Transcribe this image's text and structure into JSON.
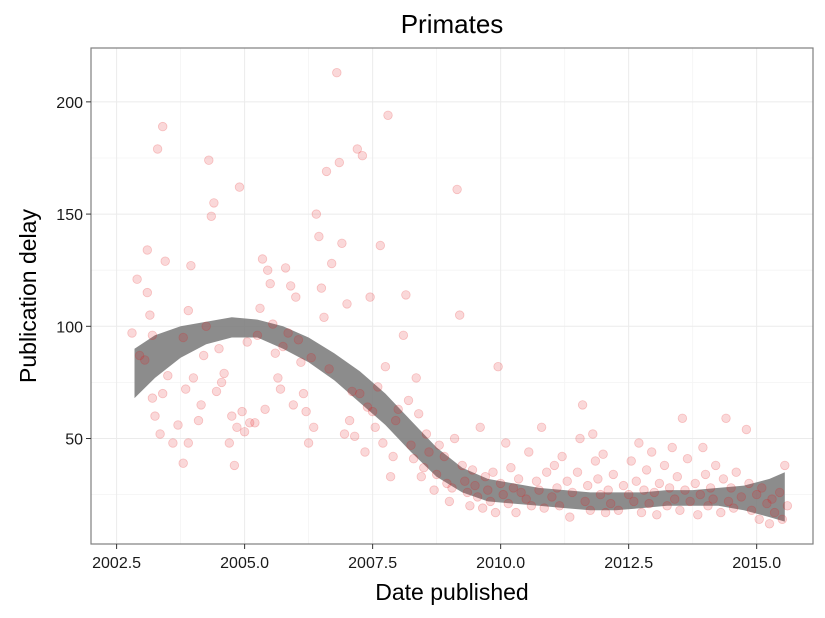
{
  "chart_data": {
    "type": "scatter",
    "title": "Primates",
    "xlabel": "Date published",
    "ylabel": "Publication delay",
    "xlim": [
      2002.0,
      2016.1
    ],
    "ylim": [
      3,
      224
    ],
    "x_ticks": [
      2002.5,
      2005.0,
      2007.5,
      2010.0,
      2012.5,
      2015.0
    ],
    "x_tick_labels": [
      "2002.5",
      "2005.0",
      "2007.5",
      "2010.0",
      "2012.5",
      "2015.0"
    ],
    "y_ticks": [
      50,
      100,
      150,
      200
    ],
    "y_tick_labels": [
      "50",
      "100",
      "150",
      "200"
    ],
    "grid": true,
    "point_color": "#e41a1c",
    "band_color": "#7f7f7f",
    "points": [
      [
        2002.8,
        97
      ],
      [
        2002.9,
        121
      ],
      [
        2002.95,
        87
      ],
      [
        2003.05,
        85
      ],
      [
        2003.1,
        134
      ],
      [
        2003.15,
        105
      ],
      [
        2003.2,
        96
      ],
      [
        2003.1,
        115
      ],
      [
        2003.2,
        68
      ],
      [
        2003.25,
        60
      ],
      [
        2003.3,
        179
      ],
      [
        2003.4,
        189
      ],
      [
        2003.45,
        129
      ],
      [
        2003.5,
        78
      ],
      [
        2003.35,
        52
      ],
      [
        2003.4,
        70
      ],
      [
        2003.6,
        48
      ],
      [
        2003.7,
        56
      ],
      [
        2003.8,
        95
      ],
      [
        2003.85,
        72
      ],
      [
        2003.9,
        107
      ],
      [
        2003.95,
        127
      ],
      [
        2003.8,
        39
      ],
      [
        2003.9,
        48
      ],
      [
        2004.0,
        77
      ],
      [
        2004.1,
        58
      ],
      [
        2004.15,
        65
      ],
      [
        2004.2,
        87
      ],
      [
        2004.25,
        100
      ],
      [
        2004.3,
        174
      ],
      [
        2004.35,
        149
      ],
      [
        2004.4,
        155
      ],
      [
        2004.45,
        71
      ],
      [
        2004.5,
        90
      ],
      [
        2004.55,
        75
      ],
      [
        2004.6,
        79
      ],
      [
        2004.7,
        48
      ],
      [
        2004.75,
        60
      ],
      [
        2004.8,
        38
      ],
      [
        2004.85,
        55
      ],
      [
        2004.9,
        162
      ],
      [
        2004.95,
        62
      ],
      [
        2005.0,
        53
      ],
      [
        2005.05,
        93
      ],
      [
        2005.1,
        57
      ],
      [
        2005.2,
        57
      ],
      [
        2005.25,
        96
      ],
      [
        2005.3,
        108
      ],
      [
        2005.35,
        130
      ],
      [
        2005.4,
        63
      ],
      [
        2005.45,
        125
      ],
      [
        2005.5,
        119
      ],
      [
        2005.55,
        101
      ],
      [
        2005.6,
        88
      ],
      [
        2005.65,
        77
      ],
      [
        2005.7,
        72
      ],
      [
        2005.75,
        91
      ],
      [
        2005.8,
        126
      ],
      [
        2005.85,
        97
      ],
      [
        2005.9,
        118
      ],
      [
        2005.95,
        65
      ],
      [
        2006.0,
        113
      ],
      [
        2006.05,
        94
      ],
      [
        2006.1,
        84
      ],
      [
        2006.15,
        70
      ],
      [
        2006.2,
        62
      ],
      [
        2006.25,
        48
      ],
      [
        2006.3,
        86
      ],
      [
        2006.35,
        55
      ],
      [
        2006.4,
        150
      ],
      [
        2006.45,
        140
      ],
      [
        2006.5,
        117
      ],
      [
        2006.55,
        104
      ],
      [
        2006.6,
        169
      ],
      [
        2006.65,
        81
      ],
      [
        2006.7,
        128
      ],
      [
        2006.8,
        213
      ],
      [
        2006.85,
        173
      ],
      [
        2006.9,
        137
      ],
      [
        2006.95,
        52
      ],
      [
        2007.0,
        110
      ],
      [
        2007.05,
        58
      ],
      [
        2007.1,
        71
      ],
      [
        2007.15,
        51
      ],
      [
        2007.2,
        179
      ],
      [
        2007.25,
        70
      ],
      [
        2007.3,
        176
      ],
      [
        2007.35,
        44
      ],
      [
        2007.4,
        64
      ],
      [
        2007.45,
        113
      ],
      [
        2007.5,
        62
      ],
      [
        2007.55,
        55
      ],
      [
        2007.6,
        73
      ],
      [
        2007.65,
        136
      ],
      [
        2007.7,
        48
      ],
      [
        2007.75,
        82
      ],
      [
        2007.8,
        194
      ],
      [
        2007.85,
        33
      ],
      [
        2007.9,
        42
      ],
      [
        2007.95,
        58
      ],
      [
        2008.0,
        63
      ],
      [
        2008.1,
        96
      ],
      [
        2008.15,
        114
      ],
      [
        2008.2,
        67
      ],
      [
        2008.25,
        47
      ],
      [
        2008.3,
        41
      ],
      [
        2008.35,
        77
      ],
      [
        2008.4,
        61
      ],
      [
        2008.45,
        33
      ],
      [
        2008.5,
        37
      ],
      [
        2008.55,
        52
      ],
      [
        2008.6,
        44
      ],
      [
        2008.7,
        27
      ],
      [
        2008.75,
        34
      ],
      [
        2008.8,
        47
      ],
      [
        2008.9,
        42
      ],
      [
        2008.95,
        30
      ],
      [
        2009.0,
        22
      ],
      [
        2009.05,
        28
      ],
      [
        2009.1,
        50
      ],
      [
        2009.15,
        161
      ],
      [
        2009.2,
        105
      ],
      [
        2009.25,
        38
      ],
      [
        2009.3,
        31
      ],
      [
        2009.35,
        26
      ],
      [
        2009.4,
        20
      ],
      [
        2009.45,
        36
      ],
      [
        2009.5,
        29
      ],
      [
        2009.55,
        24
      ],
      [
        2009.6,
        55
      ],
      [
        2009.65,
        19
      ],
      [
        2009.7,
        33
      ],
      [
        2009.75,
        27
      ],
      [
        2009.8,
        22
      ],
      [
        2009.85,
        35
      ],
      [
        2009.9,
        17
      ],
      [
        2009.95,
        82
      ],
      [
        2010.0,
        30
      ],
      [
        2010.05,
        25
      ],
      [
        2010.1,
        48
      ],
      [
        2010.15,
        21
      ],
      [
        2010.2,
        37
      ],
      [
        2010.25,
        28
      ],
      [
        2010.3,
        17
      ],
      [
        2010.35,
        32
      ],
      [
        2010.4,
        26
      ],
      [
        2010.5,
        23
      ],
      [
        2010.55,
        44
      ],
      [
        2010.6,
        20
      ],
      [
        2010.7,
        31
      ],
      [
        2010.75,
        27
      ],
      [
        2010.8,
        55
      ],
      [
        2010.85,
        19
      ],
      [
        2010.9,
        35
      ],
      [
        2011.0,
        24
      ],
      [
        2011.05,
        38
      ],
      [
        2011.1,
        28
      ],
      [
        2011.15,
        20
      ],
      [
        2011.2,
        42
      ],
      [
        2011.3,
        31
      ],
      [
        2011.35,
        15
      ],
      [
        2011.4,
        26
      ],
      [
        2011.5,
        35
      ],
      [
        2011.55,
        50
      ],
      [
        2011.6,
        65
      ],
      [
        2011.65,
        22
      ],
      [
        2011.7,
        29
      ],
      [
        2011.75,
        18
      ],
      [
        2011.8,
        52
      ],
      [
        2011.85,
        40
      ],
      [
        2011.9,
        32
      ],
      [
        2011.95,
        25
      ],
      [
        2012.0,
        43
      ],
      [
        2012.05,
        17
      ],
      [
        2012.1,
        27
      ],
      [
        2012.15,
        21
      ],
      [
        2012.2,
        34
      ],
      [
        2012.3,
        18
      ],
      [
        2012.4,
        29
      ],
      [
        2012.5,
        25
      ],
      [
        2012.55,
        40
      ],
      [
        2012.6,
        22
      ],
      [
        2012.65,
        31
      ],
      [
        2012.7,
        48
      ],
      [
        2012.75,
        17
      ],
      [
        2012.8,
        27
      ],
      [
        2012.85,
        36
      ],
      [
        2012.9,
        21
      ],
      [
        2012.95,
        44
      ],
      [
        2013.0,
        26
      ],
      [
        2013.05,
        16
      ],
      [
        2013.1,
        30
      ],
      [
        2013.2,
        38
      ],
      [
        2013.25,
        20
      ],
      [
        2013.3,
        28
      ],
      [
        2013.35,
        46
      ],
      [
        2013.4,
        23
      ],
      [
        2013.45,
        33
      ],
      [
        2013.5,
        18
      ],
      [
        2013.55,
        59
      ],
      [
        2013.6,
        27
      ],
      [
        2013.65,
        41
      ],
      [
        2013.7,
        22
      ],
      [
        2013.8,
        30
      ],
      [
        2013.85,
        16
      ],
      [
        2013.9,
        25
      ],
      [
        2013.95,
        46
      ],
      [
        2014.0,
        34
      ],
      [
        2014.05,
        20
      ],
      [
        2014.1,
        28
      ],
      [
        2014.15,
        23
      ],
      [
        2014.2,
        38
      ],
      [
        2014.3,
        17
      ],
      [
        2014.35,
        32
      ],
      [
        2014.4,
        59
      ],
      [
        2014.45,
        22
      ],
      [
        2014.5,
        28
      ],
      [
        2014.55,
        19
      ],
      [
        2014.6,
        35
      ],
      [
        2014.7,
        24
      ],
      [
        2014.8,
        54
      ],
      [
        2014.85,
        30
      ],
      [
        2014.9,
        18
      ],
      [
        2015.0,
        25
      ],
      [
        2015.05,
        14
      ],
      [
        2015.1,
        28
      ],
      [
        2015.2,
        21
      ],
      [
        2015.25,
        12
      ],
      [
        2015.3,
        23
      ],
      [
        2015.35,
        17
      ],
      [
        2015.45,
        26
      ],
      [
        2015.5,
        14
      ],
      [
        2015.55,
        38
      ],
      [
        2015.6,
        20
      ]
    ],
    "smooth_band": [
      [
        2002.85,
        90,
        68
      ],
      [
        2003.25,
        96,
        77
      ],
      [
        2003.75,
        100,
        86
      ],
      [
        2004.25,
        102,
        92
      ],
      [
        2004.75,
        104,
        95
      ],
      [
        2005.25,
        103,
        95
      ],
      [
        2005.75,
        100,
        90
      ],
      [
        2006.25,
        95,
        84
      ],
      [
        2006.75,
        88,
        76
      ],
      [
        2007.25,
        80,
        66
      ],
      [
        2007.75,
        70,
        56
      ],
      [
        2008.25,
        58,
        44
      ],
      [
        2008.75,
        46,
        33
      ],
      [
        2009.25,
        37,
        26
      ],
      [
        2009.75,
        32,
        22
      ],
      [
        2010.25,
        30,
        21
      ],
      [
        2010.75,
        28,
        20
      ],
      [
        2011.25,
        27,
        19
      ],
      [
        2011.75,
        26,
        18
      ],
      [
        2012.25,
        26,
        18
      ],
      [
        2012.75,
        26,
        19
      ],
      [
        2013.25,
        27,
        20
      ],
      [
        2013.75,
        27,
        20
      ],
      [
        2014.25,
        28,
        20
      ],
      [
        2014.75,
        29,
        18
      ],
      [
        2015.25,
        32,
        15
      ],
      [
        2015.55,
        35,
        13
      ]
    ]
  }
}
